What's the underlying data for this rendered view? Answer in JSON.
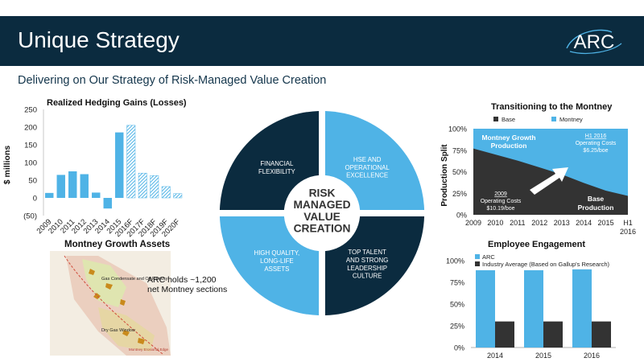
{
  "header": {
    "title": "Unique Strategy",
    "subtitle": "Delivering on Our Strategy of Risk-Managed Value Creation",
    "logo_text": "ARC"
  },
  "colors": {
    "navy": "#0b2b3f",
    "accent": "#4fb3e6",
    "dark_bar": "#333333"
  },
  "chart_data": [
    {
      "type": "bar",
      "title": "Realized Hedging Gains (Losses)",
      "ylabel": "$ millions",
      "ylim": [
        -50,
        250
      ],
      "yticks": [
        "250",
        "200",
        "150",
        "100",
        "50",
        "0",
        "(50)"
      ],
      "categories": [
        "2009",
        "2010",
        "2011",
        "2012",
        "2013",
        "2014",
        "2015",
        "2016F",
        "2017F",
        "2018F",
        "2019F",
        "2020F"
      ],
      "values": [
        14,
        65,
        75,
        67,
        15,
        -30,
        185,
        205,
        70,
        63,
        32,
        12
      ],
      "forecast_from_index": 7
    },
    {
      "type": "area",
      "title": "Transitioning to the Montney",
      "ylabel": "Production Split",
      "legend": [
        "Base",
        "Montney"
      ],
      "yticks": [
        "100%",
        "75%",
        "50%",
        "25%",
        "0%"
      ],
      "categories": [
        "2009",
        "2010",
        "2011",
        "2012",
        "2013",
        "2014",
        "2015",
        "H1 2016"
      ],
      "montney_share": [
        0.23,
        0.3,
        0.37,
        0.45,
        0.53,
        0.63,
        0.72,
        0.78
      ],
      "annotations": {
        "montney_label": "Montney Growth Production",
        "base_label": "Base Production",
        "h1_2016_header": "H1 2016",
        "h1_2016_cost": "Operating Costs $6.25/boe",
        "y2009_header": "2009",
        "y2009_cost": "Operating Costs $10.19/boe"
      }
    },
    {
      "type": "bar",
      "title": "Employee Engagement",
      "legend": [
        "ARC",
        "Industry Average (Based on Gallup's Research)"
      ],
      "yticks": [
        "100%",
        "75%",
        "50%",
        "25%",
        "0%"
      ],
      "categories": [
        "2014",
        "2015",
        "2016"
      ],
      "series": [
        {
          "name": "ARC",
          "values": [
            0.89,
            0.89,
            0.9
          ]
        },
        {
          "name": "Industry Average (Based on Gallup's Research)",
          "values": [
            0.3,
            0.3,
            0.3
          ]
        }
      ]
    }
  ],
  "wheel": {
    "center": [
      "RISK",
      "MANAGED",
      "VALUE",
      "CREATION"
    ],
    "top_left": [
      "FINANCIAL",
      "FLEXIBILITY"
    ],
    "top_right": [
      "HSE AND",
      "OPERATIONAL",
      "EXCELLENCE"
    ],
    "bottom_left": [
      "HIGH QUALITY,",
      "LONG-LIFE",
      "ASSETS"
    ],
    "bottom_right": [
      "TOP TALENT",
      "AND STRONG",
      "LEADERSHIP",
      "CULTURE"
    ]
  },
  "map": {
    "title": "Montney Growth Assets",
    "caption": "ARC holds ~1,200 net Montney sections",
    "labels": [
      "Gas Condensate and Oil Fairway",
      "Dry Gas Window",
      "Montney Erosional Edge"
    ]
  }
}
